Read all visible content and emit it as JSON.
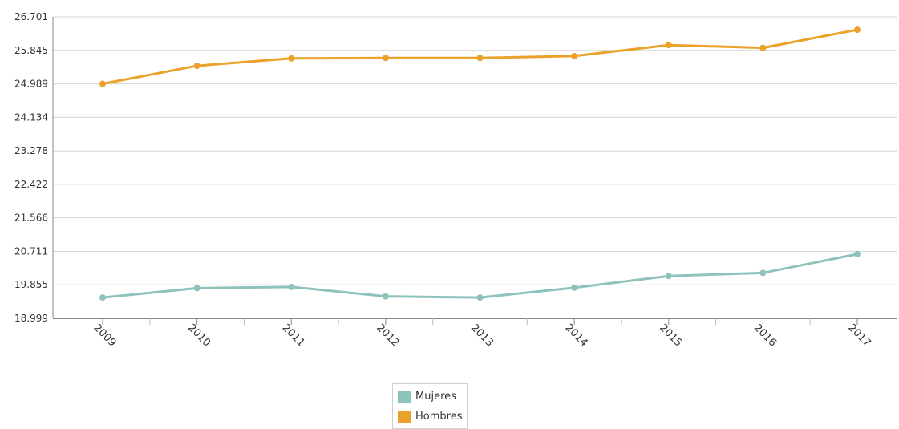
{
  "chart_data": {
    "type": "line",
    "title": "",
    "xlabel": "",
    "ylabel": "",
    "x": [
      "2009",
      "2010",
      "2011",
      "2012",
      "2013",
      "2014",
      "2015",
      "2016",
      "2017"
    ],
    "y_ticks": [
      "18.999",
      "19.855",
      "20.711",
      "21.566",
      "22.422",
      "23.278",
      "24.134",
      "24.989",
      "25.845",
      "26.701"
    ],
    "ylim": [
      18.999,
      26.701
    ],
    "grid": true,
    "legend_position": "bottom",
    "series": [
      {
        "name": "Mujeres",
        "color": "#8ec3bc",
        "values": [
          19.53,
          19.77,
          19.8,
          19.56,
          19.53,
          19.78,
          20.08,
          20.16,
          20.64
        ]
      },
      {
        "name": "Hombres",
        "color": "#eaa22b",
        "values": [
          24.99,
          25.45,
          25.64,
          25.65,
          25.65,
          25.7,
          25.98,
          25.91,
          26.37
        ]
      }
    ]
  }
}
